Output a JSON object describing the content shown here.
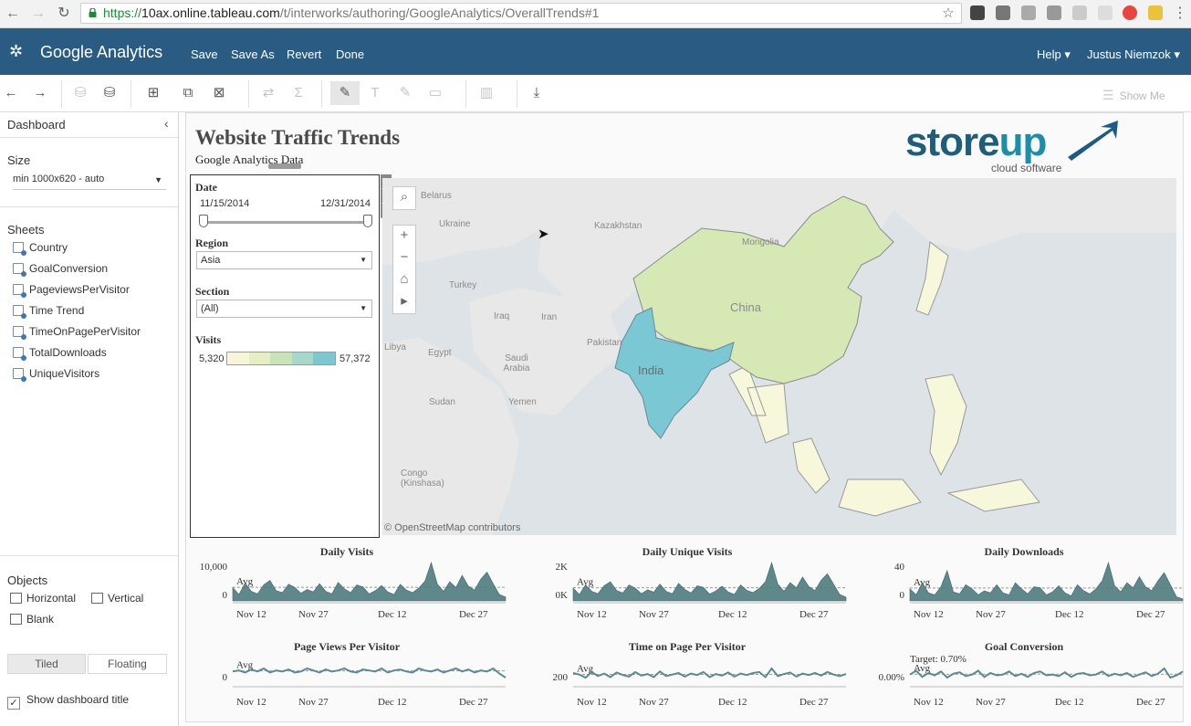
{
  "browser": {
    "url_https": "https://",
    "url_host": "10ax.online.tableau.com",
    "url_path": "/t/interworks/authoring/GoogleAnalytics/OverallTrends#1"
  },
  "app": {
    "workbook_title": "Google Analytics",
    "menu": [
      "Save",
      "Save As",
      "Revert",
      "Done"
    ],
    "help": "Help ▾",
    "user": "Justus Niemzok ▾"
  },
  "toolbar": {
    "show_me": "Show Me"
  },
  "left_panel": {
    "dashboard_label": "Dashboard",
    "size_label": "Size",
    "size_value": "min 1000x620 - auto",
    "sheets_label": "Sheets",
    "sheets": [
      "Country",
      "GoalConversion",
      "PageviewsPerVisitor",
      "Time Trend",
      "TimeOnPagePerVisitor",
      "TotalDownloads",
      "UniqueVisitors"
    ],
    "objects_label": "Objects",
    "objects": [
      "Horizontal",
      "Vertical",
      "Blank"
    ],
    "tiled": "Tiled",
    "floating": "Floating",
    "show_title": "Show dashboard title",
    "show_title_checked": true
  },
  "dashboard": {
    "title": "Website Traffic Trends",
    "subtitle": "Google Analytics Data",
    "logo_text": "storeup",
    "logo_tagline": "cloud software",
    "filters": {
      "date_label": "Date",
      "date_start": "11/15/2014",
      "date_end": "12/31/2014",
      "region_label": "Region",
      "region_value": "Asia",
      "section_label": "Section",
      "section_value": "(All)",
      "visits_label": "Visits",
      "visits_min": "5,320",
      "visits_max": "57,372",
      "legend_colors": [
        "#f7f6da",
        "#e6eec4",
        "#c9e3b8",
        "#a6d7c8",
        "#7cc7d0"
      ]
    },
    "map": {
      "attribution": "© OpenStreetMap contributors",
      "labels": [
        "Belarus",
        "Ukraine",
        "Kazakhstan",
        "Mongolia",
        "Turkey",
        "Iraq",
        "Iran",
        "Pakistan",
        "Libya",
        "Egypt",
        "Saudi Arabia",
        "Yemen",
        "Sudan",
        "Congo (Kinshasa)",
        "China",
        "India"
      ],
      "colors": {
        "china": "#d6e9b5",
        "india": "#79c8d4",
        "light": "#f7f7dc",
        "land": "#e8e8e8",
        "water": "#dde3e6"
      }
    },
    "x_ticks": [
      "Nov 12",
      "Nov 27",
      "Dec 12",
      "Dec 27"
    ],
    "avg_label": "Avg",
    "charts": [
      {
        "title": "Daily Visits",
        "y_ticks": [
          "10,000",
          "0"
        ],
        "ref_label": "Avg"
      },
      {
        "title": "Daily Unique Visits",
        "y_ticks": [
          "2K",
          "0K"
        ],
        "ref_label": "Avg"
      },
      {
        "title": "Daily Downloads",
        "y_ticks": [
          "40",
          "0"
        ],
        "ref_label": "Avg"
      },
      {
        "title": "Page Views Per Visitor",
        "y_ticks": [
          "0"
        ],
        "ref_label": "Avg"
      },
      {
        "title": "Time on Page Per Visitor",
        "y_ticks": [
          "200"
        ],
        "ref_label": "Avg"
      },
      {
        "title": "Goal Conversion",
        "y_ticks": [
          "0.00%"
        ],
        "ref_label": "Avg",
        "target_label": "Target: 0.70%"
      }
    ]
  },
  "chart_data": [
    {
      "type": "area",
      "title": "Daily Visits",
      "x_ticks": [
        "Nov 12",
        "Nov 27",
        "Dec 12",
        "Dec 27"
      ],
      "y_ticks": [
        "10,000",
        "0"
      ],
      "values": [
        4200,
        2000,
        5600,
        3000,
        2200,
        5000,
        6400,
        3200,
        2600,
        5200,
        4200,
        2400,
        3600,
        2800,
        5400,
        3000,
        2200,
        5800,
        3800,
        2600,
        5000,
        4400,
        2200,
        3200,
        4800,
        2800,
        2000,
        5200,
        3400,
        2600,
        4000,
        6200,
        12000,
        5200,
        3000,
        6000,
        4200,
        8000,
        4600,
        3400,
        6800,
        9000,
        5400,
        2000,
        1200
      ]
    },
    {
      "type": "area",
      "title": "Daily Unique Visits",
      "x_ticks": [
        "Nov 12",
        "Nov 27",
        "Dec 12",
        "Dec 27"
      ],
      "y_ticks": [
        "2K",
        "0K"
      ],
      "values": [
        800,
        400,
        1000,
        600,
        450,
        950,
        1200,
        650,
        500,
        1000,
        800,
        450,
        700,
        550,
        1050,
        600,
        450,
        1100,
        720,
        500,
        950,
        850,
        430,
        620,
        920,
        560,
        400,
        1000,
        660,
        520,
        780,
        1200,
        2400,
        1050,
        600,
        1150,
        820,
        1500,
        900,
        650,
        1300,
        1700,
        1050,
        400,
        230
      ]
    },
    {
      "type": "area",
      "title": "Daily Downloads",
      "x_ticks": [
        "Nov 12",
        "Nov 27",
        "Dec 12",
        "Dec 27"
      ],
      "y_ticks": [
        "40",
        "0"
      ],
      "values": [
        12,
        6,
        18,
        8,
        6,
        14,
        30,
        9,
        7,
        16,
        12,
        6,
        10,
        8,
        16,
        8,
        6,
        18,
        12,
        7,
        14,
        13,
        6,
        9,
        15,
        8,
        5,
        16,
        10,
        7,
        12,
        20,
        38,
        15,
        9,
        18,
        13,
        24,
        14,
        10,
        20,
        28,
        16,
        4,
        2
      ]
    },
    {
      "type": "line",
      "title": "Page Views Per Visitor",
      "x_ticks": [
        "Nov 12",
        "Nov 27",
        "Dec 12",
        "Dec 27"
      ],
      "y_ticks": [
        "0"
      ],
      "values": [
        2.6,
        2.7,
        2.5,
        2.8,
        2.6,
        2.9,
        2.5,
        2.7,
        2.6,
        2.8,
        2.5,
        2.6,
        2.9,
        2.7,
        2.5,
        2.8,
        2.6,
        2.7,
        2.9,
        2.6,
        2.5,
        2.8,
        2.7,
        2.6,
        2.9,
        2.5,
        2.7,
        2.8,
        2.6,
        2.5,
        2.9,
        2.7,
        2.6,
        2.8,
        2.5,
        2.7,
        2.9,
        2.6,
        2.8,
        2.5,
        2.7,
        2.6,
        2.9,
        2.4,
        2.0
      ]
    },
    {
      "type": "line",
      "title": "Time on Page Per Visitor",
      "x_ticks": [
        "Nov 12",
        "Nov 27",
        "Dec 12",
        "Dec 27"
      ],
      "y_ticks": [
        "200"
      ],
      "values": [
        130,
        115,
        85,
        140,
        100,
        125,
        90,
        135,
        110,
        95,
        140,
        105,
        120,
        90,
        145,
        100,
        115,
        130,
        95,
        125,
        110,
        140,
        90,
        120,
        105,
        135,
        95,
        125,
        110,
        130,
        140,
        90,
        175,
        100,
        120,
        135,
        95,
        125,
        110,
        130,
        105,
        140,
        115,
        100,
        120
      ]
    },
    {
      "type": "line",
      "title": "Goal Conversion",
      "x_ticks": [
        "Nov 12",
        "Nov 27",
        "Dec 12",
        "Dec 27"
      ],
      "y_ticks": [
        "0.00%"
      ],
      "target": "0.70%",
      "values": [
        0.5,
        0.75,
        0.35,
        0.6,
        0.45,
        0.7,
        0.3,
        0.55,
        0.65,
        0.4,
        0.5,
        0.75,
        0.35,
        0.6,
        0.45,
        0.5,
        0.7,
        0.4,
        0.55,
        0.35,
        0.6,
        0.7,
        0.45,
        0.5,
        0.4,
        0.65,
        0.35,
        0.55,
        0.6,
        0.45,
        0.5,
        0.7,
        0.4,
        0.55,
        0.45,
        0.6,
        0.35,
        0.5,
        0.65,
        0.4,
        0.55,
        0.9,
        0.3,
        0.45,
        0.7
      ]
    }
  ]
}
